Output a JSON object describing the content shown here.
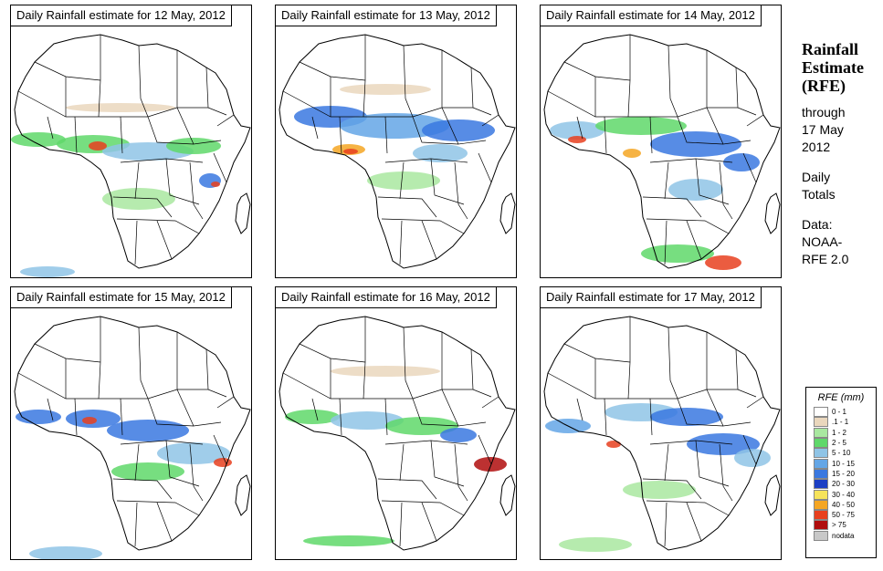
{
  "panels": [
    {
      "title": "Daily Rainfall estimate for  12 May, 2012"
    },
    {
      "title": "Daily Rainfall estimate for  13 May, 2012"
    },
    {
      "title": "Daily Rainfall estimate for  14 May, 2012"
    },
    {
      "title": "Daily Rainfall estimate for  15 May, 2012"
    },
    {
      "title": "Daily Rainfall estimate for  16 May, 2012"
    },
    {
      "title": "Daily Rainfall estimate for  17 May, 2012"
    }
  ],
  "side": {
    "title_line1": "Rainfall",
    "title_line2": "Estimate",
    "title_line3": "(RFE)",
    "through": "through",
    "date_line1": "17 May",
    "date_line2": "2012",
    "daily1": "Daily",
    "daily2": "Totals",
    "data_label": "Data:",
    "source1": "NOAA-",
    "source2": "RFE 2.0"
  },
  "legend": {
    "title": "RFE (mm)",
    "items": [
      {
        "label": "0 - 1",
        "color": "#ffffff"
      },
      {
        "label": ".1 - 1",
        "color": "#ead7bd"
      },
      {
        "label": "1 - 2",
        "color": "#a9e8a0"
      },
      {
        "label": "2 - 5",
        "color": "#5fd86a"
      },
      {
        "label": "5 - 10",
        "color": "#8fc4e6"
      },
      {
        "label": "10 - 15",
        "color": "#64a6e6"
      },
      {
        "label": "15 - 20",
        "color": "#3a78e0"
      },
      {
        "label": "20 - 30",
        "color": "#1c3fc4"
      },
      {
        "label": "30 - 40",
        "color": "#f6e35b"
      },
      {
        "label": "40 - 50",
        "color": "#f5a623"
      },
      {
        "label": "50 - 75",
        "color": "#e8401e"
      },
      {
        "label": "> 75",
        "color": "#b00d0d"
      },
      {
        "label": "nodata",
        "color": "#c8c8c8"
      }
    ]
  }
}
